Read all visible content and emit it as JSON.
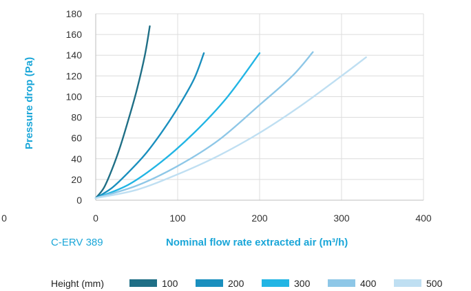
{
  "chart_data": {
    "type": "line",
    "title": "",
    "xlabel": "Nominal flow rate extracted air (m³/h)",
    "ylabel": "Pressure drop (Pa)",
    "model": "C-ERV 389",
    "xlim": [
      0,
      400
    ],
    "ylim": [
      0,
      180
    ],
    "x_ticks": [
      "0",
      "100",
      "200",
      "300",
      "400"
    ],
    "y_ticks": [
      "0",
      "20",
      "40",
      "60",
      "80",
      "100",
      "120",
      "140",
      "160",
      "180"
    ],
    "extra_tick_label": "0",
    "grid": true,
    "legend": {
      "title": "Height (mm)",
      "placement": "bottom"
    },
    "series": [
      {
        "name": "100",
        "color": "#1f6f86",
        "points": [
          [
            0,
            2
          ],
          [
            10,
            12
          ],
          [
            20,
            30
          ],
          [
            30,
            52
          ],
          [
            40,
            78
          ],
          [
            50,
            106
          ],
          [
            60,
            140
          ],
          [
            66,
            168
          ]
        ]
      },
      {
        "name": "200",
        "color": "#1a8fbe",
        "points": [
          [
            0,
            2
          ],
          [
            20,
            12
          ],
          [
            40,
            27
          ],
          [
            60,
            44
          ],
          [
            80,
            65
          ],
          [
            100,
            89
          ],
          [
            120,
            117
          ],
          [
            132,
            142
          ]
        ]
      },
      {
        "name": "300",
        "color": "#22b5e4",
        "points": [
          [
            0,
            2
          ],
          [
            40,
            15
          ],
          [
            80,
            37
          ],
          [
            120,
            65
          ],
          [
            160,
            99
          ],
          [
            200,
            142
          ]
        ]
      },
      {
        "name": "400",
        "color": "#8ec7e7",
        "points": [
          [
            0,
            2
          ],
          [
            50,
            14
          ],
          [
            100,
            33
          ],
          [
            150,
            58
          ],
          [
            200,
            92
          ],
          [
            240,
            120
          ],
          [
            265,
            143
          ]
        ]
      },
      {
        "name": "500",
        "color": "#bfdff2",
        "points": [
          [
            0,
            2
          ],
          [
            50,
            10
          ],
          [
            100,
            25
          ],
          [
            150,
            43
          ],
          [
            200,
            65
          ],
          [
            250,
            91
          ],
          [
            300,
            120
          ],
          [
            330,
            138
          ]
        ]
      }
    ]
  }
}
